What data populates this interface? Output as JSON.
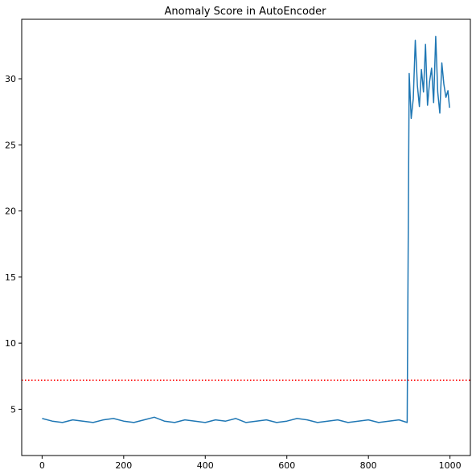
{
  "chart_data": {
    "type": "line",
    "title": "Anomaly Score in AutoEncoder",
    "xlabel": "",
    "ylabel": "",
    "xlim": [
      -50,
      1050
    ],
    "ylim": [
      1.5,
      34.5
    ],
    "xticks": [
      0,
      200,
      400,
      600,
      800,
      1000
    ],
    "yticks": [
      5,
      10,
      15,
      20,
      25,
      30
    ],
    "grid": false,
    "threshold": {
      "value": 7.2,
      "color": "#ff0000",
      "style": "dotted"
    },
    "series": [
      {
        "color": "#1f77b4",
        "x": [
          0,
          25,
          50,
          75,
          100,
          125,
          150,
          175,
          200,
          225,
          250,
          275,
          300,
          325,
          350,
          375,
          400,
          425,
          450,
          475,
          500,
          525,
          550,
          575,
          600,
          625,
          650,
          675,
          700,
          725,
          750,
          775,
          800,
          825,
          850,
          875,
          895,
          900,
          905,
          910,
          915,
          920,
          925,
          930,
          935,
          940,
          945,
          950,
          955,
          960,
          965,
          970,
          975,
          980,
          985,
          990,
          995,
          999
        ],
        "y": [
          4.3,
          4.1,
          4.0,
          4.2,
          4.1,
          4.0,
          4.2,
          4.3,
          4.1,
          4.0,
          4.2,
          4.4,
          4.1,
          4.0,
          4.2,
          4.1,
          4.0,
          4.2,
          4.1,
          4.3,
          4.0,
          4.1,
          4.2,
          4.0,
          4.1,
          4.3,
          4.2,
          4.0,
          4.1,
          4.2,
          4.0,
          4.1,
          4.2,
          4.0,
          4.1,
          4.2,
          4.0,
          30.4,
          27.0,
          28.5,
          32.9,
          29.5,
          27.9,
          30.7,
          29.0,
          32.6,
          28.0,
          29.8,
          30.8,
          28.2,
          33.2,
          29.0,
          27.4,
          31.2,
          29.6,
          28.6,
          29.1,
          27.8
        ]
      }
    ]
  }
}
